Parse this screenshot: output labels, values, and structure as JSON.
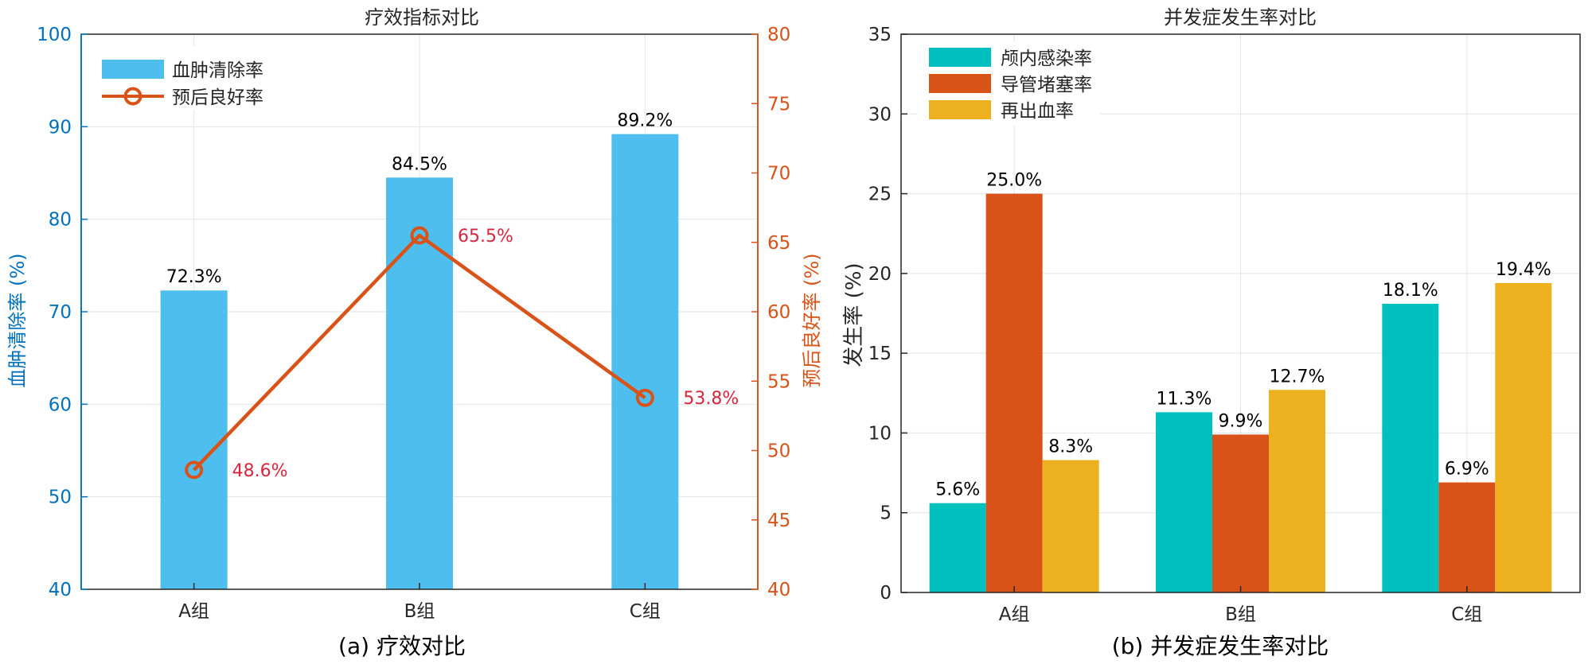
{
  "chart_data": [
    {
      "type": "bar",
      "title": "疗效指标对比",
      "caption": "(a) 疗效对比",
      "categories": [
        "A组",
        "B组",
        "C组"
      ],
      "ylabel": "血肿清除率 (%)",
      "ylim": [
        40,
        100
      ],
      "yticks": [
        40,
        50,
        60,
        70,
        80,
        90,
        100
      ],
      "y2label": "预后良好率 (%)",
      "y2lim": [
        40,
        80
      ],
      "y2ticks": [
        40,
        45,
        50,
        55,
        60,
        65,
        70,
        75,
        80
      ],
      "grid": true,
      "legend_position": "top-left",
      "series": [
        {
          "name": "血肿清除率",
          "kind": "bar",
          "axis": "left",
          "values": [
            72.3,
            84.5,
            89.2
          ],
          "labels": [
            "72.3%",
            "84.5%",
            "89.2%"
          ],
          "color": "#4DBEEE"
        },
        {
          "name": "预后良好率",
          "kind": "line",
          "axis": "right",
          "values": [
            48.6,
            65.5,
            53.8
          ],
          "labels": [
            "48.6%",
            "65.5%",
            "53.8%"
          ],
          "color": "#D95319",
          "label_color": "#D7263D"
        }
      ],
      "colors": {
        "left_axis": "#0072BD",
        "right_axis": "#D95319"
      }
    },
    {
      "type": "bar",
      "title": "并发症发生率对比",
      "caption": "(b) 并发症发生率对比",
      "categories": [
        "A组",
        "B组",
        "C组"
      ],
      "ylabel": "发生率 (%)",
      "ylim": [
        0,
        35
      ],
      "yticks": [
        0,
        5,
        10,
        15,
        20,
        25,
        30,
        35
      ],
      "grid": true,
      "legend_position": "top-left",
      "series": [
        {
          "name": "颅内感染率",
          "values": [
            5.6,
            11.3,
            18.1
          ],
          "labels": [
            "5.6%",
            "11.3%",
            "18.1%"
          ],
          "color": "#00BFBF"
        },
        {
          "name": "导管堵塞率",
          "values": [
            25.0,
            9.9,
            6.9
          ],
          "labels": [
            "25.0%",
            "9.9%",
            "6.9%"
          ],
          "color": "#D95319"
        },
        {
          "name": "再出血率",
          "values": [
            8.3,
            12.7,
            19.4
          ],
          "labels": [
            "8.3%",
            "12.7%",
            "19.4%"
          ],
          "color": "#EDB120"
        }
      ]
    }
  ]
}
